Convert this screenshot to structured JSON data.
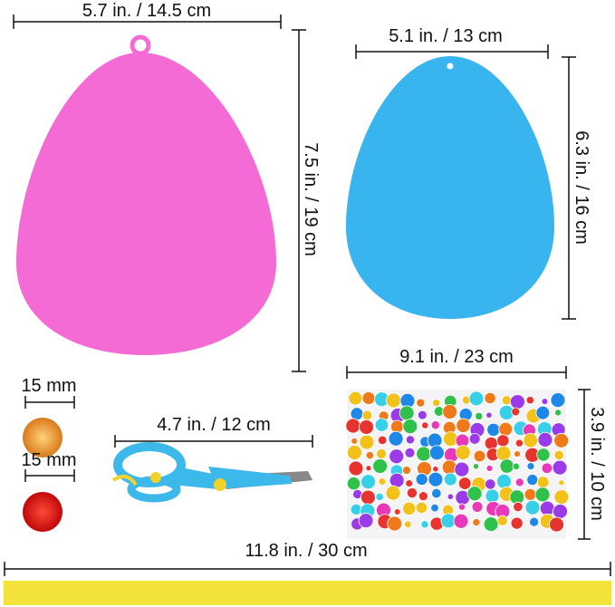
{
  "labels": {
    "pink_egg_width": "5.7 in. / 14.5 cm",
    "pink_egg_height": "7.5 in. / 19 cm",
    "blue_egg_width": "5.1 in. / 13 cm",
    "blue_egg_height": "6.3 in. / 16 cm",
    "pompom_orange": "15 mm",
    "pompom_red": "15 mm",
    "scissors_length": "4.7 in. / 12 cm",
    "gem_sheet_width": "9.1 in. / 23 cm",
    "gem_sheet_height": "3.9 in. / 10 cm",
    "ribbon_length": "11.8 in. / 30 cm"
  },
  "colors": {
    "pink_egg": "#f56bd6",
    "blue_egg": "#38b4ee",
    "orange_pompom": "#f0a040",
    "red_pompom": "#e81818",
    "scissors_blue": "#3cb8ea",
    "scissors_yellow": "#f2d22a",
    "ribbon": "#f2e23a",
    "gems": [
      "#e8342e",
      "#f2c21a",
      "#2ec24a",
      "#1e88e8",
      "#e83ab8",
      "#9b3ae8",
      "#38d0e8",
      "#f07a1a"
    ]
  }
}
